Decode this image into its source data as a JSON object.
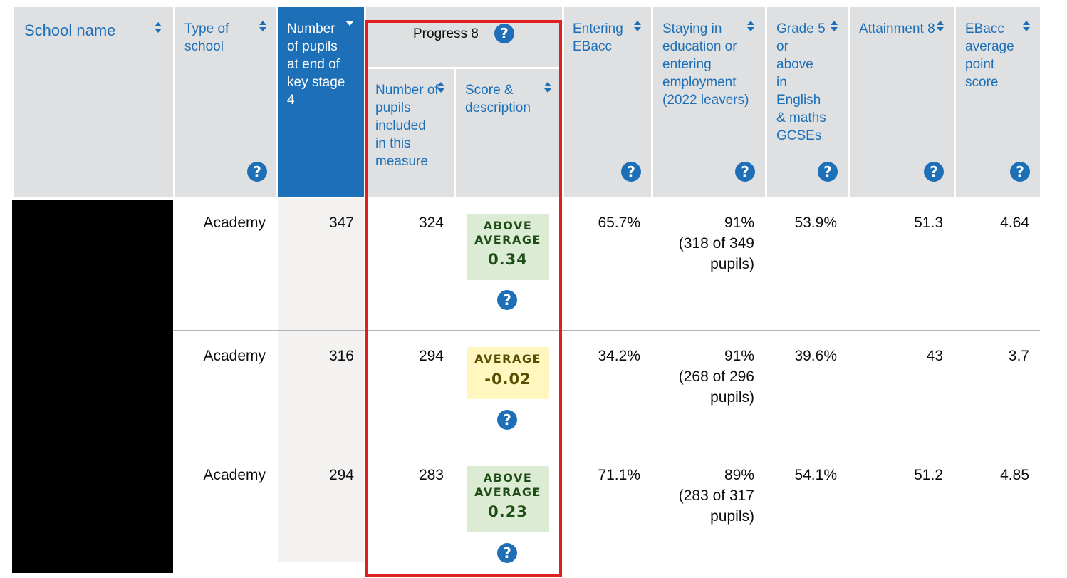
{
  "headers": {
    "school_name": "School name",
    "type_of_school": "Type of school",
    "pupils_end_ks4": "Number of pupils at end of key stage 4",
    "progress8": "Progress 8",
    "p8_pupils_included": "Number of pupils included in this measure",
    "p8_score": "Score & description",
    "entering_ebacc": "Entering EBacc",
    "staying_in_education": "Staying in education or entering employment (2022 leavers)",
    "grade5_eng_maths": "Grade 5 or above in English & maths GCSEs",
    "attainment8": "Attainment 8",
    "ebacc_aps": "EBacc average point score"
  },
  "help_glyph": "?",
  "rows": [
    {
      "type": "Academy",
      "pupils": "347",
      "p8_pupils": "324",
      "p8_desc": "ABOVE AVERAGE",
      "p8_desc_line1": "ABOVE",
      "p8_desc_line2": "AVERAGE",
      "p8_score": "0.34",
      "p8_level": "above",
      "ebacc": "65.7%",
      "staying_pct": "91%",
      "staying_detail_1": "(318 of 349",
      "staying_detail_2": "pupils)",
      "grade5": "53.9%",
      "attainment8": "51.3",
      "ebacc_aps": "4.64"
    },
    {
      "type": "Academy",
      "pupils": "316",
      "p8_pupils": "294",
      "p8_desc": "AVERAGE",
      "p8_desc_line1": "AVERAGE",
      "p8_desc_line2": "",
      "p8_score": "-0.02",
      "p8_level": "average",
      "ebacc": "34.2%",
      "staying_pct": "91%",
      "staying_detail_1": "(268 of 296",
      "staying_detail_2": "pupils)",
      "grade5": "39.6%",
      "attainment8": "43",
      "ebacc_aps": "3.7"
    },
    {
      "type": "Academy",
      "pupils": "294",
      "p8_pupils": "283",
      "p8_desc": "ABOVE AVERAGE",
      "p8_desc_line1": "ABOVE",
      "p8_desc_line2": "AVERAGE",
      "p8_score": "0.23",
      "p8_level": "above",
      "ebacc": "71.1%",
      "staying_pct": "89%",
      "staying_detail_1": "(283 of 317",
      "staying_detail_2": "pupils)",
      "grade5": "54.1%",
      "attainment8": "51.2",
      "ebacc_aps": "4.85"
    }
  ],
  "colors": {
    "link_blue": "#1d70b8",
    "header_grey": "#dee0e2",
    "highlight_red": "#e02020",
    "above_average_bg": "#dcebd3",
    "average_bg": "#fff7bf"
  },
  "sort": {
    "column": "pupils_end_ks4",
    "direction": "descending"
  },
  "redacted_school_names": true
}
